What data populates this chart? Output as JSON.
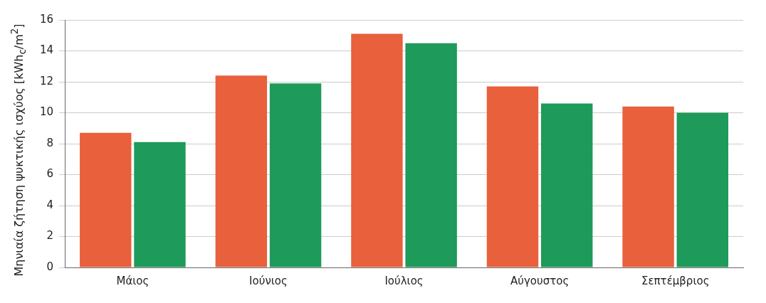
{
  "chart_data": {
    "type": "bar",
    "ylabel": "Μηνιαία ζήτηση ψυκτικής ισχύος [kWh$_{c}$/m$^{2}$]",
    "categories": [
      "Μάιος",
      "Ιούνιος",
      "Ιούλιος",
      "Αύγουστος",
      "Σεπτέμβριος"
    ],
    "series": [
      {
        "color": "#e8603c",
        "values": [
          8.7,
          12.4,
          15.1,
          11.7,
          10.4
        ]
      },
      {
        "color": "#1e9a5a",
        "values": [
          8.1,
          11.9,
          14.5,
          10.6,
          10.0
        ]
      }
    ],
    "ylim": [
      0,
      16
    ],
    "yticks": [
      0,
      2,
      4,
      6,
      8,
      10,
      12,
      14,
      16
    ],
    "grid": "y",
    "legend": false
  }
}
